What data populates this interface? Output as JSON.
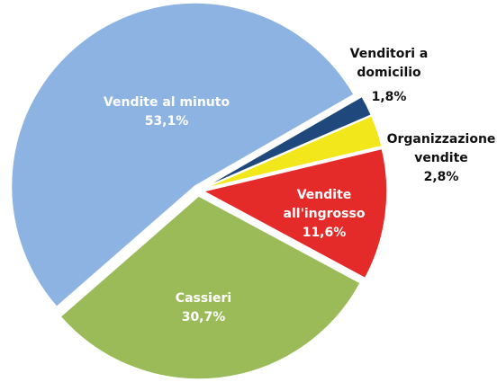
{
  "chart_data": {
    "type": "pie",
    "categories": [
      "Venditori a domicilio",
      "Organizzazione vendite",
      "Vendite all'ingrosso",
      "Cassieri",
      "Vendite al minuto"
    ],
    "values": [
      1.8,
      2.8,
      11.6,
      30.7,
      53.1
    ],
    "value_labels": [
      "1,8%",
      "2,8%",
      "11,6%",
      "30,7%",
      "53,1%"
    ],
    "colors": [
      "#1f497d",
      "#f2e71a",
      "#e52a2a",
      "#9bbb59",
      "#8db3e2"
    ]
  }
}
